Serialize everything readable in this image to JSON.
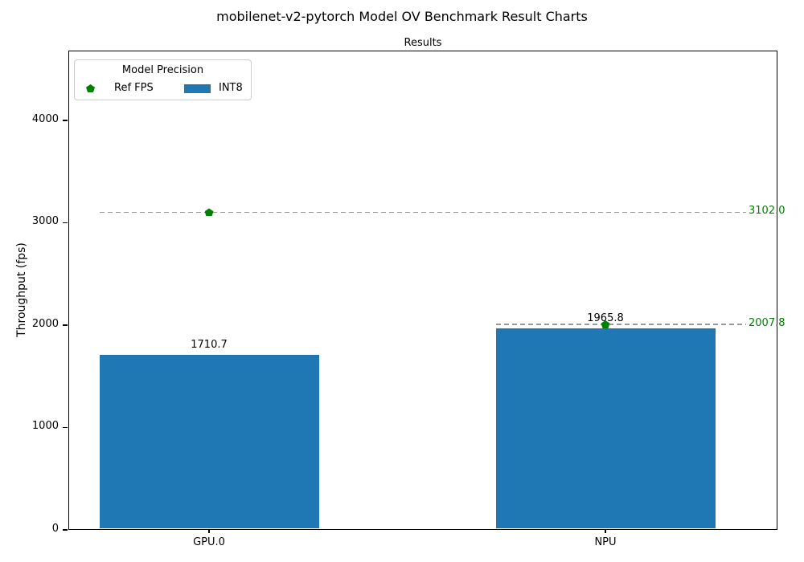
{
  "title": "mobilenet-v2-pytorch Model OV Benchmark Result Charts",
  "chart_data": {
    "type": "bar",
    "title": "Results",
    "xlabel": "",
    "ylabel": "Throughput (fps)",
    "categories": [
      "GPU.0",
      "NPU"
    ],
    "yticks": [
      "0",
      "1000",
      "2000",
      "3000",
      "4000"
    ],
    "ylim": [
      0,
      4682
    ],
    "grid": false,
    "series": [
      {
        "name": "INT8",
        "type": "bar",
        "values": [
          1710.7,
          1965.8
        ],
        "labels": [
          "1710.7",
          "1965.8"
        ],
        "color": "#1f77b4"
      },
      {
        "name": "Ref FPS",
        "type": "reference-line",
        "values": [
          3102.0,
          2007.8
        ],
        "labels": [
          "3102.0",
          "2007.8"
        ],
        "marker": "pentagon",
        "marker_color": "#008000",
        "line_color": "#9a9a9a",
        "label_color": "#008000"
      }
    ],
    "legend": {
      "title": "Model Precision",
      "position": "upper-left",
      "entries": [
        {
          "label": "Ref FPS",
          "marker": "pentagon-icon",
          "color": "#008000"
        },
        {
          "label": "INT8",
          "marker": "swatch",
          "color": "#1f77b4"
        }
      ]
    }
  }
}
